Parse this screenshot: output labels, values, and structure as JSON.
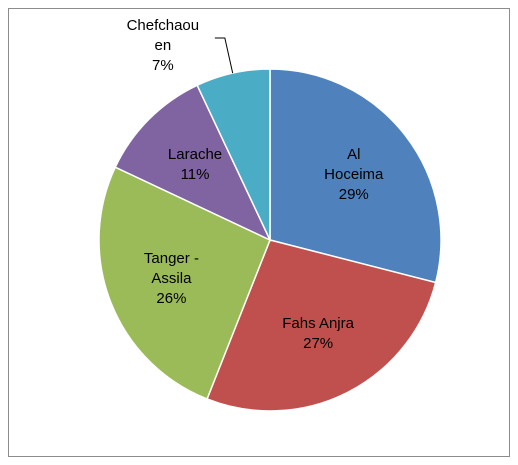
{
  "chart_data": {
    "type": "pie",
    "categories": [
      "Al Hoceima",
      "Fahs Anjra",
      "Tanger - Assila",
      "Larache",
      "Chefchaouen"
    ],
    "values": [
      29,
      27,
      26,
      11,
      7
    ],
    "value_labels": [
      "29%",
      "27%",
      "26%",
      "11%",
      "7%"
    ],
    "colors": [
      "#4f81bd",
      "#c0504d",
      "#9bbb59",
      "#8064a2",
      "#4bacc6"
    ]
  }
}
